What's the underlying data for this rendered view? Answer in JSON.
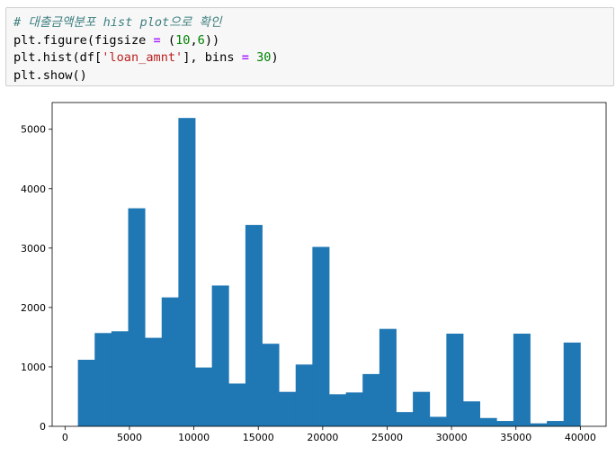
{
  "code_cell": {
    "comment": "# 대출금액분포 hist plot으로 확인",
    "line2": {
      "pre": "plt.figure(figsize ",
      "op": "=",
      "mid": " (",
      "n1": "10",
      "comma": ",",
      "n2": "6",
      "post": "))"
    },
    "line3": {
      "pre": "plt.hist(df[",
      "str": "'loan_amnt'",
      "mid": "], bins ",
      "op": "=",
      "sp": " ",
      "num": "30",
      "post": ")"
    },
    "line4": "plt.show()"
  },
  "chart_data": {
    "type": "bar",
    "title": "",
    "xlabel": "",
    "ylabel": "",
    "color": "#1f77b4",
    "bin_start": 1000,
    "bin_width": 1300,
    "bins": 30,
    "values": [
      1120,
      1570,
      1600,
      3670,
      1490,
      2170,
      5190,
      990,
      2370,
      720,
      3390,
      1390,
      580,
      1040,
      3020,
      540,
      570,
      880,
      1640,
      240,
      580,
      160,
      1560,
      420,
      140,
      90,
      1560,
      50,
      90,
      1410
    ],
    "xlim": [
      -1000,
      42000
    ],
    "ylim": [
      0,
      5450
    ],
    "xticks": [
      0,
      5000,
      10000,
      15000,
      20000,
      25000,
      30000,
      35000,
      40000
    ],
    "xtick_labels": [
      "0",
      "5000",
      "10000",
      "15000",
      "20000",
      "25000",
      "30000",
      "35000",
      "40000"
    ],
    "yticks": [
      0,
      1000,
      2000,
      3000,
      4000,
      5000
    ],
    "ytick_labels": [
      "0",
      "1000",
      "2000",
      "3000",
      "4000",
      "5000"
    ]
  }
}
